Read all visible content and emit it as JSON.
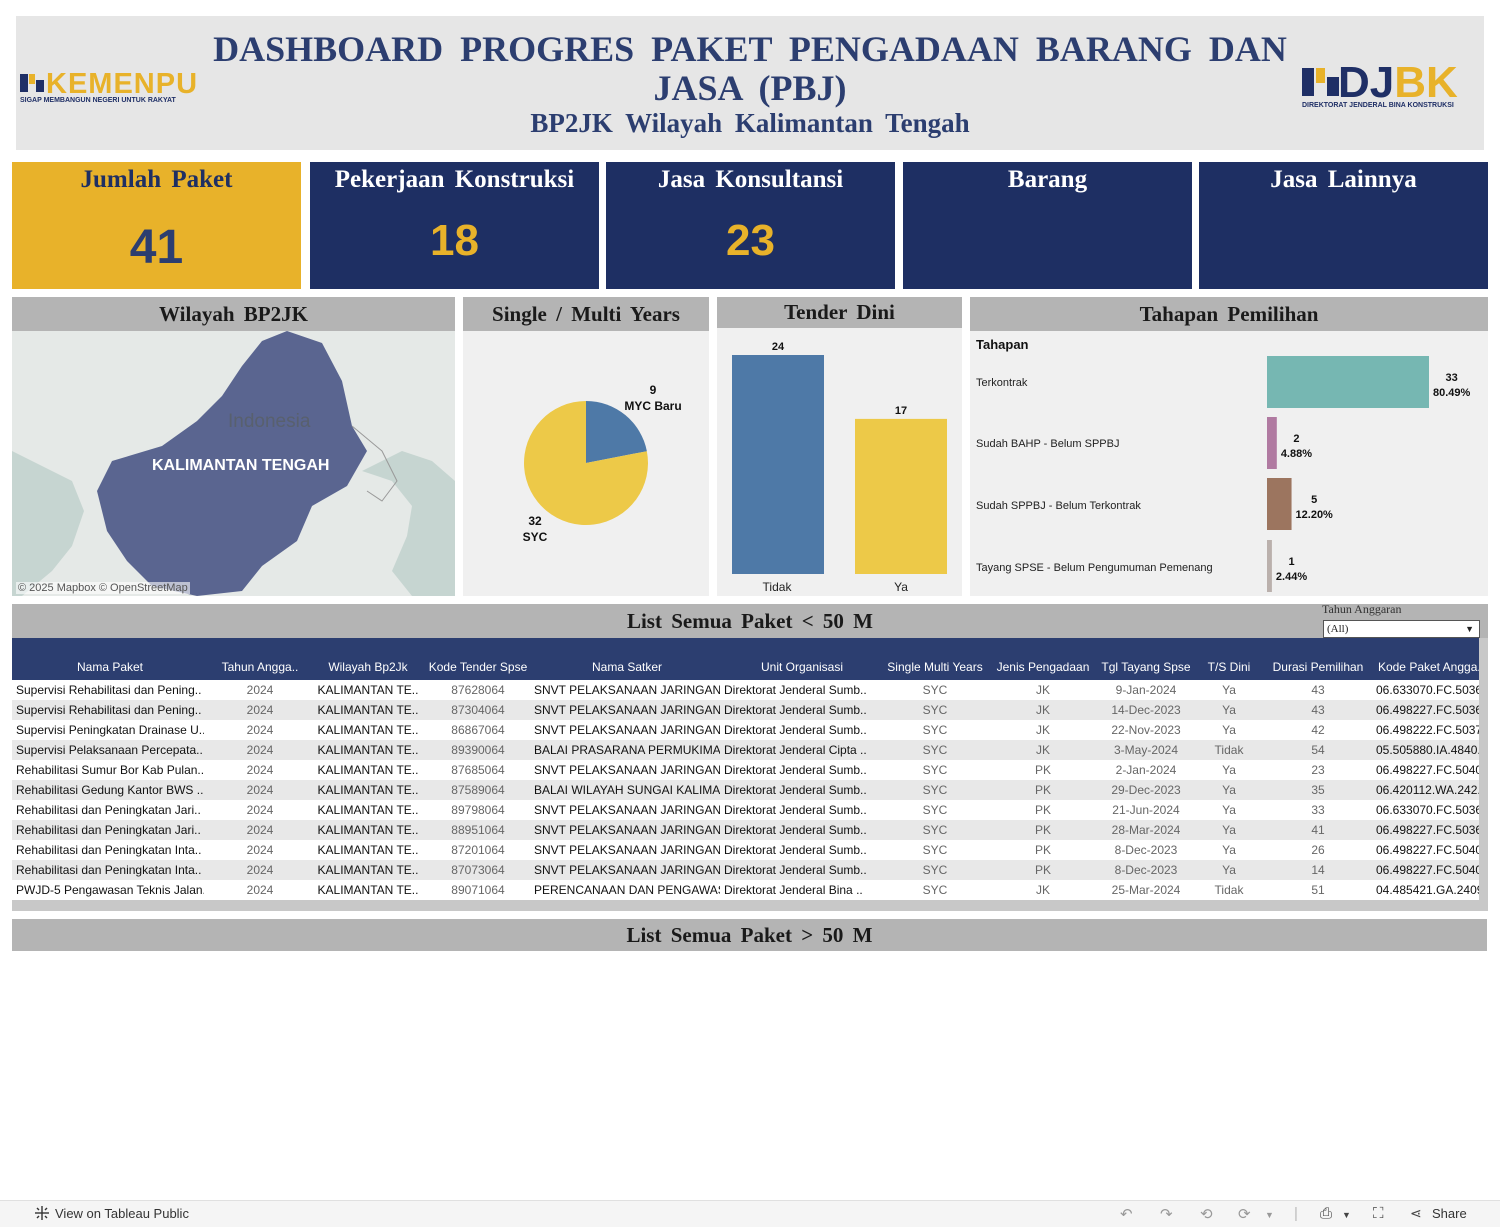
{
  "header": {
    "title_line1": "DASHBOARD PROGRES PAKET PENGADAAN BARANG DAN",
    "title_line2": "JASA (PBJ)",
    "subtitle": "BP2JK Wilayah Kalimantan Tengah",
    "logo_left": {
      "name": "KEMENPU",
      "tagline": "SIGAP MEMBANGUN NEGERI UNTUK RAKYAT"
    },
    "logo_right": {
      "name_a": "DJ",
      "name_b": "BK",
      "tagline": "DIREKTORAT JENDERAL BINA KONSTRUKSI"
    },
    "colors": {
      "navy": "#1e2f63",
      "gold": "#e8b22a",
      "header_bg": "#e6e6e6"
    }
  },
  "kpis": [
    {
      "label": "Jumlah Paket",
      "value": "41"
    },
    {
      "label": "Pekerjaan Konstruksi",
      "value": "18"
    },
    {
      "label": "Jasa Konsultansi",
      "value": "23"
    },
    {
      "label": "Barang",
      "value": ""
    },
    {
      "label": "Jasa Lainnya",
      "value": ""
    }
  ],
  "map": {
    "title": "Wilayah BP2JK",
    "country_label": "Indonesia",
    "province_label": "KALIMANTAN TENGAH",
    "credit": "© 2025 Mapbox  © OpenStreetMap"
  },
  "single_multi": {
    "title": "Single / Multi Years"
  },
  "tender_dini": {
    "title": "Tender Dini"
  },
  "tahapan": {
    "title": "Tahapan Pemilihan",
    "header": "Tahapan"
  },
  "chart_data": [
    {
      "type": "pie",
      "labels": [
        "MYC Baru",
        "SYC"
      ],
      "values": [
        9,
        32
      ],
      "colors": [
        "#4e79a7",
        "#edc948"
      ]
    },
    {
      "type": "bar",
      "categories": [
        "Tidak",
        "Ya"
      ],
      "values": [
        24,
        17
      ],
      "colors": [
        "#4e79a7",
        "#edc948"
      ]
    },
    {
      "type": "bar",
      "orientation": "horizontal",
      "categories": [
        "Terkontrak",
        "Sudah BAHP - Belum SPPBJ",
        "Sudah SPPBJ - Belum Terkontrak",
        "Tayang SPSE - Belum Pengumuman Pemenang"
      ],
      "values": [
        33,
        2,
        5,
        1
      ],
      "percents": [
        "80.49%",
        "4.88%",
        "12.20%",
        "2.44%"
      ],
      "colors": [
        "#76b7b2",
        "#b07aa1",
        "#9c755f",
        "#bab0ac"
      ]
    }
  ],
  "table_small": {
    "title": "List Semua Paket < 50 M",
    "filter_label": "Tahun Anggaran",
    "filter_value": "(All)",
    "columns": [
      "Nama Paket",
      "Tahun Angga..",
      "Wilayah Bp2Jk",
      "Kode Tender Spse",
      "Nama Satker",
      "Unit Organisasi",
      "Single Multi Years",
      "Jenis Pengadaan",
      "Tgl Tayang Spse",
      "T/S Dini",
      "Durasi Pemilihan",
      "Kode Paket Angga.."
    ],
    "rows": [
      [
        "Supervisi Rehabilitasi dan Pening..",
        "2024",
        "KALIMANTAN TE..",
        "87628064",
        "SNVT PELAKSANAAN JARINGAN ..",
        "Direktorat Jenderal Sumb..",
        "SYC",
        "JK",
        "9-Jan-2024",
        "Ya",
        "43",
        "06.633070.FC.5036.."
      ],
      [
        "Supervisi Rehabilitasi dan Pening..",
        "2024",
        "KALIMANTAN TE..",
        "87304064",
        "SNVT PELAKSANAAN JARINGAN ..",
        "Direktorat Jenderal Sumb..",
        "SYC",
        "JK",
        "14-Dec-2023",
        "Ya",
        "43",
        "06.498227.FC.5036.."
      ],
      [
        "Supervisi Peningkatan Drainase U..",
        "2024",
        "KALIMANTAN TE..",
        "86867064",
        "SNVT PELAKSANAAN  JARINGAN ..",
        "Direktorat Jenderal Sumb..",
        "SYC",
        "JK",
        "22-Nov-2023",
        "Ya",
        "42",
        "06.498222.FC.5037.."
      ],
      [
        "Supervisi Pelaksanaan Percepata..",
        "2024",
        "KALIMANTAN TE..",
        "89390064",
        "BALAI PRASARANA PERMUKIMA..",
        "Direktorat Jenderal Cipta ..",
        "SYC",
        "JK",
        "3-May-2024",
        "Tidak",
        "54",
        "05.505880.IA.4840.."
      ],
      [
        "Rehabilitasi Sumur Bor Kab Pulan..",
        "2024",
        "KALIMANTAN TE..",
        "87685064",
        "SNVT PELAKSANAAN JARINGAN ..",
        "Direktorat Jenderal Sumb..",
        "SYC",
        "PK",
        "2-Jan-2024",
        "Ya",
        "23",
        "06.498227.FC.5040.."
      ],
      [
        "Rehabilitasi Gedung Kantor BWS ..",
        "2024",
        "KALIMANTAN TE..",
        "87589064",
        "BALAI WILAYAH SUNGAI KALIMA..",
        "Direktorat Jenderal Sumb..",
        "SYC",
        "PK",
        "29-Dec-2023",
        "Ya",
        "35",
        "06.420112.WA.242.."
      ],
      [
        "Rehabilitasi dan Peningkatan Jari..",
        "2024",
        "KALIMANTAN TE..",
        "89798064",
        "SNVT PELAKSANAAN JARINGAN ..",
        "Direktorat Jenderal Sumb..",
        "SYC",
        "PK",
        "21-Jun-2024",
        "Ya",
        "33",
        "06.633070.FC.5036.."
      ],
      [
        "Rehabilitasi dan Peningkatan Jari..",
        "2024",
        "KALIMANTAN TE..",
        "88951064",
        "SNVT PELAKSANAAN JARINGAN ..",
        "Direktorat Jenderal Sumb..",
        "SYC",
        "PK",
        "28-Mar-2024",
        "Ya",
        "41",
        "06.498227.FC.5036.."
      ],
      [
        "Rehabilitasi dan Peningkatan Inta..",
        "2024",
        "KALIMANTAN TE..",
        "87201064",
        "SNVT PELAKSANAAN JARINGAN ..",
        "Direktorat Jenderal Sumb..",
        "SYC",
        "PK",
        "8-Dec-2023",
        "Ya",
        "26",
        "06.498227.FC.5040.."
      ],
      [
        "Rehabilitasi dan Peningkatan Inta..",
        "2024",
        "KALIMANTAN TE..",
        "87073064",
        "SNVT PELAKSANAAN JARINGAN ..",
        "Direktorat Jenderal Sumb..",
        "SYC",
        "PK",
        "8-Dec-2023",
        "Ya",
        "14",
        "06.498227.FC.5040.."
      ],
      [
        "PWJD-5 Pengawasan Teknis Jalan..",
        "2024",
        "KALIMANTAN TE..",
        "89071064",
        "PERENCANAAN DAN PENGAWAS..",
        "Direktorat Jenderal Bina ..",
        "SYC",
        "JK",
        "25-Mar-2024",
        "Tidak",
        "51",
        "04.485421.GA.2409.."
      ]
    ]
  },
  "table_large": {
    "title": "List Semua Paket > 50 M"
  },
  "toolbar": {
    "view_label": "View on Tableau Public",
    "share_label": "Share",
    "icons": [
      "undo-icon",
      "redo-icon",
      "revert-icon",
      "refresh-icon",
      "download-icon",
      "fullscreen-icon",
      "share-icon"
    ]
  }
}
